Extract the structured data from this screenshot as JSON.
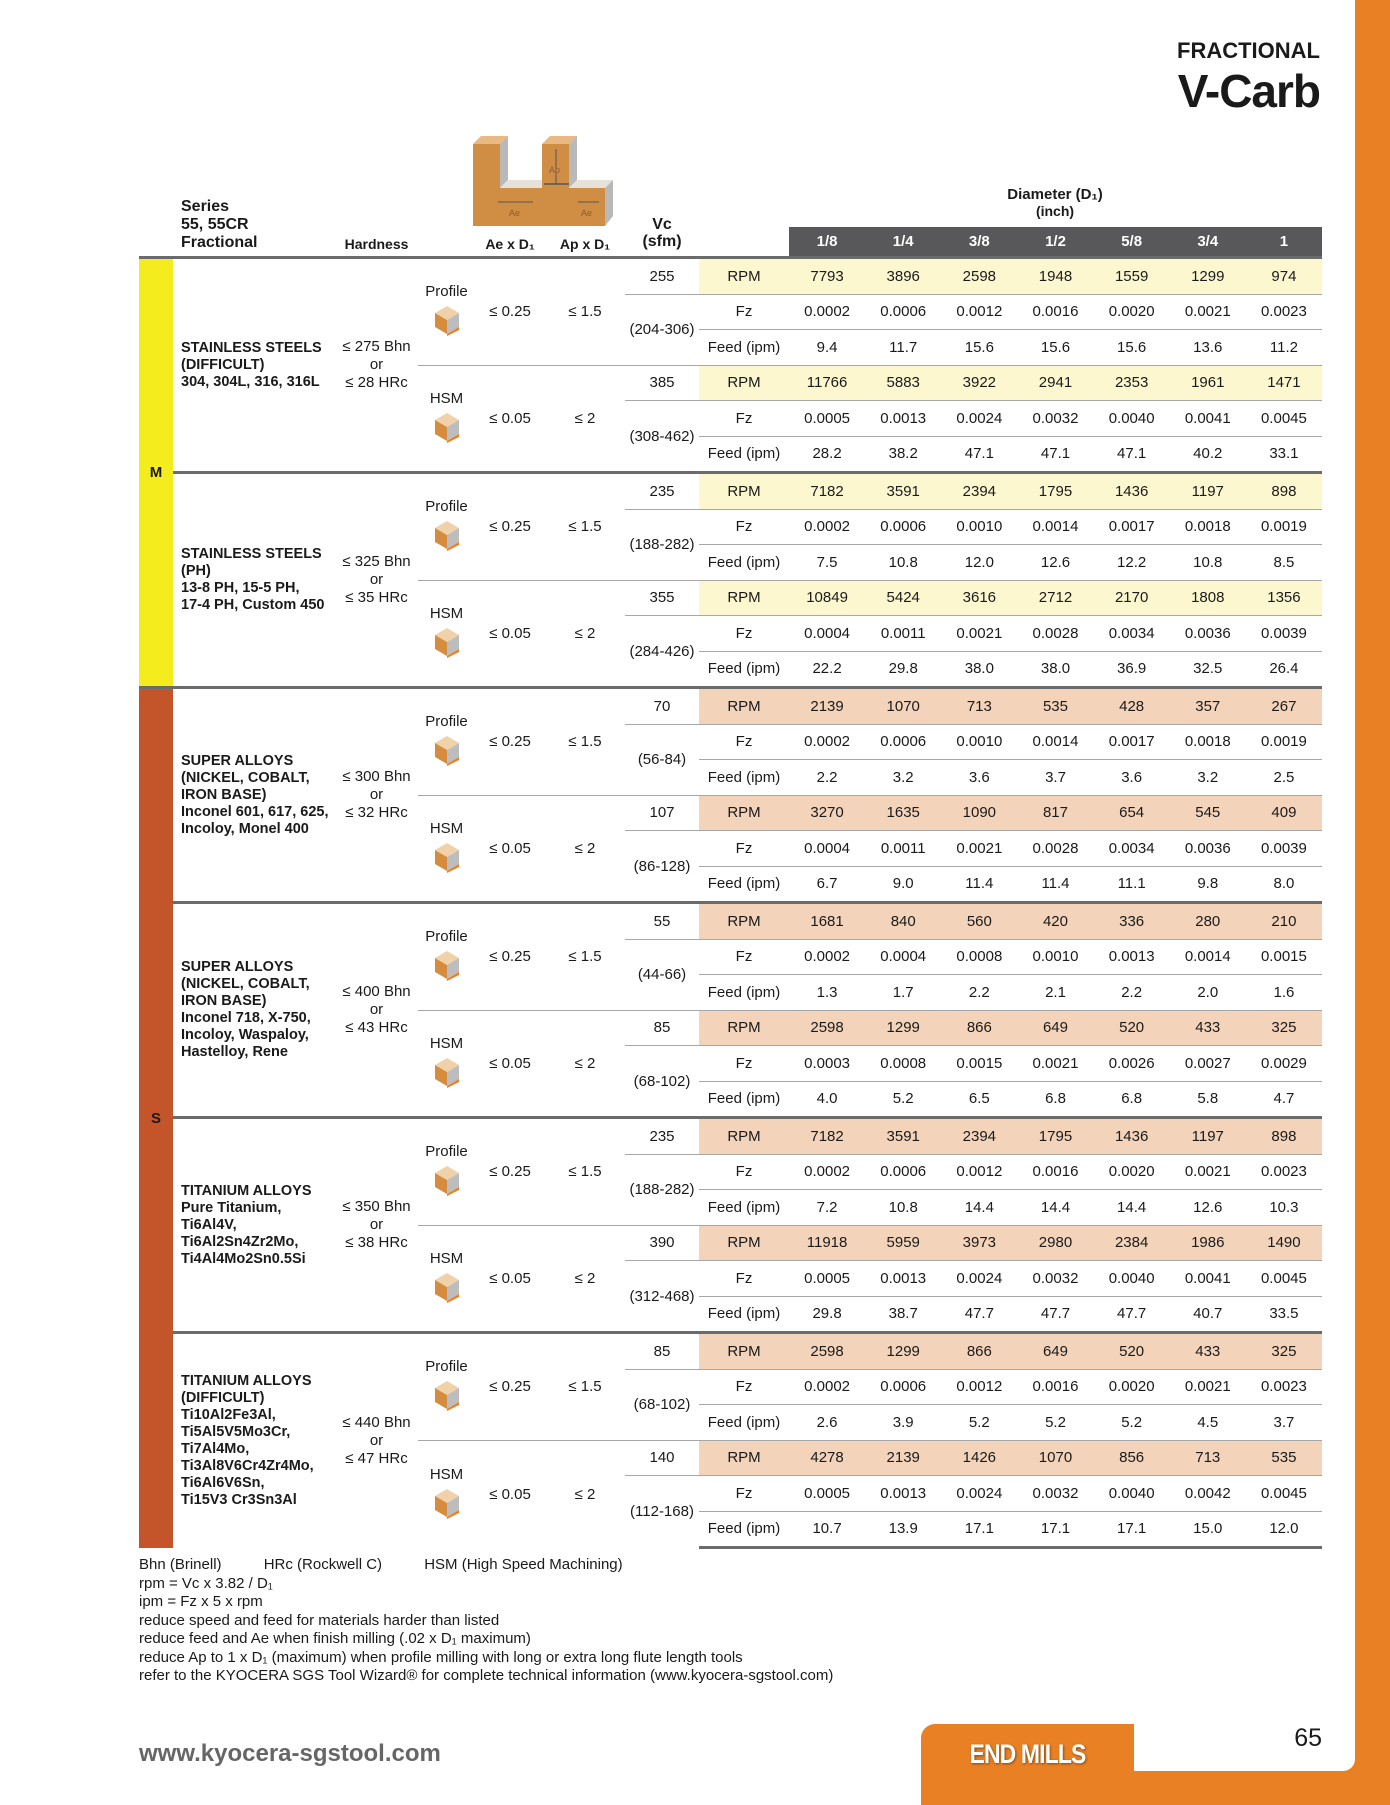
{
  "header": {
    "category": "FRACTIONAL",
    "product": "V-Carb"
  },
  "columns": {
    "series": [
      "Series",
      "55, 55CR",
      "Fractional"
    ],
    "hardness": "Hardness",
    "ae": "Ae x D₁",
    "ap": "Ap x D₁",
    "vc": [
      "Vc",
      "(sfm)"
    ],
    "diameter": [
      "Diameter (D₁)",
      "(inch)"
    ],
    "diameters": [
      "1/8",
      "1/4",
      "3/8",
      "1/2",
      "5/8",
      "3/4",
      "1"
    ]
  },
  "illustration": {
    "labels": [
      "Ap",
      "Ae",
      "Ae"
    ]
  },
  "colors": {
    "M_band": "#f5ec1e",
    "S_band": "#c4552a",
    "M_rpm": "#fcf7cf",
    "S_rpm": "#f3d4bb",
    "accent": "#e98124",
    "header": "#58585a"
  },
  "row_labels": [
    "RPM",
    "Fz",
    "Feed (ipm)"
  ],
  "groups": [
    {
      "code": "M",
      "materials": [
        {
          "name": [
            "STAINLESS STEELS",
            "(DIFFICULT)",
            "304, 304L, 316, 316L"
          ],
          "hardness": [
            "≤ 275 Bhn",
            "or",
            "≤ 28 HRc"
          ],
          "modes": [
            {
              "mode": "Profile",
              "ae": "≤ 0.25",
              "ap": "≤ 1.5",
              "vc": "255",
              "range": "(204-306)",
              "rpm": [
                "7793",
                "3896",
                "2598",
                "1948",
                "1559",
                "1299",
                "974"
              ],
              "fz": [
                "0.0002",
                "0.0006",
                "0.0012",
                "0.0016",
                "0.0020",
                "0.0021",
                "0.0023"
              ],
              "feed": [
                "9.4",
                "11.7",
                "15.6",
                "15.6",
                "15.6",
                "13.6",
                "11.2"
              ]
            },
            {
              "mode": "HSM",
              "ae": "≤ 0.05",
              "ap": "≤ 2",
              "vc": "385",
              "range": "(308-462)",
              "rpm": [
                "11766",
                "5883",
                "3922",
                "2941",
                "2353",
                "1961",
                "1471"
              ],
              "fz": [
                "0.0005",
                "0.0013",
                "0.0024",
                "0.0032",
                "0.0040",
                "0.0041",
                "0.0045"
              ],
              "feed": [
                "28.2",
                "38.2",
                "47.1",
                "47.1",
                "47.1",
                "40.2",
                "33.1"
              ]
            }
          ]
        },
        {
          "name": [
            "STAINLESS STEELS",
            "(PH)",
            "13-8 PH, 15-5 PH,",
            "17-4 PH, Custom 450"
          ],
          "hardness": [
            "≤ 325 Bhn",
            "or",
            "≤ 35 HRc"
          ],
          "modes": [
            {
              "mode": "Profile",
              "ae": "≤ 0.25",
              "ap": "≤ 1.5",
              "vc": "235",
              "range": "(188-282)",
              "rpm": [
                "7182",
                "3591",
                "2394",
                "1795",
                "1436",
                "1197",
                "898"
              ],
              "fz": [
                "0.0002",
                "0.0006",
                "0.0010",
                "0.0014",
                "0.0017",
                "0.0018",
                "0.0019"
              ],
              "feed": [
                "7.5",
                "10.8",
                "12.0",
                "12.6",
                "12.2",
                "10.8",
                "8.5"
              ]
            },
            {
              "mode": "HSM",
              "ae": "≤ 0.05",
              "ap": "≤ 2",
              "vc": "355",
              "range": "(284-426)",
              "rpm": [
                "10849",
                "5424",
                "3616",
                "2712",
                "2170",
                "1808",
                "1356"
              ],
              "fz": [
                "0.0004",
                "0.0011",
                "0.0021",
                "0.0028",
                "0.0034",
                "0.0036",
                "0.0039"
              ],
              "feed": [
                "22.2",
                "29.8",
                "38.0",
                "38.0",
                "36.9",
                "32.5",
                "26.4"
              ]
            }
          ]
        }
      ]
    },
    {
      "code": "S",
      "materials": [
        {
          "name": [
            "SUPER ALLOYS",
            "(NICKEL, COBALT,",
            "IRON BASE)",
            "Inconel 601, 617, 625,",
            "Incoloy, Monel 400"
          ],
          "hardness": [
            "≤ 300 Bhn",
            "or",
            "≤ 32 HRc"
          ],
          "modes": [
            {
              "mode": "Profile",
              "ae": "≤ 0.25",
              "ap": "≤ 1.5",
              "vc": "70",
              "range": "(56-84)",
              "rpm": [
                "2139",
                "1070",
                "713",
                "535",
                "428",
                "357",
                "267"
              ],
              "fz": [
                "0.0002",
                "0.0006",
                "0.0010",
                "0.0014",
                "0.0017",
                "0.0018",
                "0.0019"
              ],
              "feed": [
                "2.2",
                "3.2",
                "3.6",
                "3.7",
                "3.6",
                "3.2",
                "2.5"
              ]
            },
            {
              "mode": "HSM",
              "ae": "≤ 0.05",
              "ap": "≤ 2",
              "vc": "107",
              "range": "(86-128)",
              "rpm": [
                "3270",
                "1635",
                "1090",
                "817",
                "654",
                "545",
                "409"
              ],
              "fz": [
                "0.0004",
                "0.0011",
                "0.0021",
                "0.0028",
                "0.0034",
                "0.0036",
                "0.0039"
              ],
              "feed": [
                "6.7",
                "9.0",
                "11.4",
                "11.4",
                "11.1",
                "9.8",
                "8.0"
              ]
            }
          ]
        },
        {
          "name": [
            "SUPER ALLOYS",
            "(NICKEL, COBALT,",
            "IRON BASE)",
            "Inconel 718, X-750,",
            "Incoloy, Waspaloy,",
            "Hastelloy, Rene"
          ],
          "hardness": [
            "≤ 400 Bhn",
            "or",
            "≤ 43 HRc"
          ],
          "modes": [
            {
              "mode": "Profile",
              "ae": "≤ 0.25",
              "ap": "≤ 1.5",
              "vc": "55",
              "range": "(44-66)",
              "rpm": [
                "1681",
                "840",
                "560",
                "420",
                "336",
                "280",
                "210"
              ],
              "fz": [
                "0.0002",
                "0.0004",
                "0.0008",
                "0.0010",
                "0.0013",
                "0.0014",
                "0.0015"
              ],
              "feed": [
                "1.3",
                "1.7",
                "2.2",
                "2.1",
                "2.2",
                "2.0",
                "1.6"
              ]
            },
            {
              "mode": "HSM",
              "ae": "≤ 0.05",
              "ap": "≤ 2",
              "vc": "85",
              "range": "(68-102)",
              "rpm": [
                "2598",
                "1299",
                "866",
                "649",
                "520",
                "433",
                "325"
              ],
              "fz": [
                "0.0003",
                "0.0008",
                "0.0015",
                "0.0021",
                "0.0026",
                "0.0027",
                "0.0029"
              ],
              "feed": [
                "4.0",
                "5.2",
                "6.5",
                "6.8",
                "6.8",
                "5.8",
                "4.7"
              ]
            }
          ]
        },
        {
          "name": [
            "TITANIUM ALLOYS",
            "Pure Titanium,",
            "Ti6Al4V,",
            "Ti6Al2Sn4Zr2Mo,",
            "Ti4Al4Mo2Sn0.5Si"
          ],
          "hardness": [
            "≤ 350 Bhn",
            "or",
            "≤ 38 HRc"
          ],
          "modes": [
            {
              "mode": "Profile",
              "ae": "≤ 0.25",
              "ap": "≤ 1.5",
              "vc": "235",
              "range": "(188-282)",
              "rpm": [
                "7182",
                "3591",
                "2394",
                "1795",
                "1436",
                "1197",
                "898"
              ],
              "fz": [
                "0.0002",
                "0.0006",
                "0.0012",
                "0.0016",
                "0.0020",
                "0.0021",
                "0.0023"
              ],
              "feed": [
                "7.2",
                "10.8",
                "14.4",
                "14.4",
                "14.4",
                "12.6",
                "10.3"
              ]
            },
            {
              "mode": "HSM",
              "ae": "≤ 0.05",
              "ap": "≤ 2",
              "vc": "390",
              "range": "(312-468)",
              "rpm": [
                "11918",
                "5959",
                "3973",
                "2980",
                "2384",
                "1986",
                "1490"
              ],
              "fz": [
                "0.0005",
                "0.0013",
                "0.0024",
                "0.0032",
                "0.0040",
                "0.0041",
                "0.0045"
              ],
              "feed": [
                "29.8",
                "38.7",
                "47.7",
                "47.7",
                "47.7",
                "40.7",
                "33.5"
              ]
            }
          ]
        },
        {
          "name": [
            "TITANIUM ALLOYS",
            "(DIFFICULT)",
            "Ti10Al2Fe3Al,",
            "Ti5Al5V5Mo3Cr,",
            "Ti7Al4Mo,",
            "Ti3Al8V6Cr4Zr4Mo,",
            "Ti6Al6V6Sn,",
            "Ti15V3 Cr3Sn3Al"
          ],
          "hardness": [
            "≤ 440 Bhn",
            "or",
            "≤ 47 HRc"
          ],
          "modes": [
            {
              "mode": "Profile",
              "ae": "≤ 0.25",
              "ap": "≤ 1.5",
              "vc": "85",
              "range": "(68-102)",
              "rpm": [
                "2598",
                "1299",
                "866",
                "649",
                "520",
                "433",
                "325"
              ],
              "fz": [
                "0.0002",
                "0.0006",
                "0.0012",
                "0.0016",
                "0.0020",
                "0.0021",
                "0.0023"
              ],
              "feed": [
                "2.6",
                "3.9",
                "5.2",
                "5.2",
                "5.2",
                "4.5",
                "3.7"
              ]
            },
            {
              "mode": "HSM",
              "ae": "≤ 0.05",
              "ap": "≤ 2",
              "vc": "140",
              "range": "(112-168)",
              "rpm": [
                "4278",
                "2139",
                "1426",
                "1070",
                "856",
                "713",
                "535"
              ],
              "fz": [
                "0.0005",
                "0.0013",
                "0.0024",
                "0.0032",
                "0.0040",
                "0.0042",
                "0.0045"
              ],
              "feed": [
                "10.7",
                "13.9",
                "17.1",
                "17.1",
                "17.1",
                "15.0",
                "12.0"
              ]
            }
          ]
        }
      ]
    }
  ],
  "notes": {
    "legend": [
      "Bhn (Brinell)",
      "HRc (Rockwell C)",
      "HSM (High Speed Machining)"
    ],
    "lines": [
      "rpm = Vc x 3.82 / D₁",
      "ipm = Fz x 5 x rpm",
      "reduce speed and feed for materials harder than listed",
      "reduce feed and Ae when finish milling (.02 x D₁ maximum)",
      "reduce Ap to 1 x D₁ (maximum) when profile milling with long or extra long flute length tools",
      "refer to the KYOCERA SGS Tool Wizard® for complete technical information (www.kyocera-sgstool.com)"
    ]
  },
  "footer": {
    "website": "www.kyocera-sgstool.com",
    "tab": "END MILLS",
    "page": "65"
  }
}
